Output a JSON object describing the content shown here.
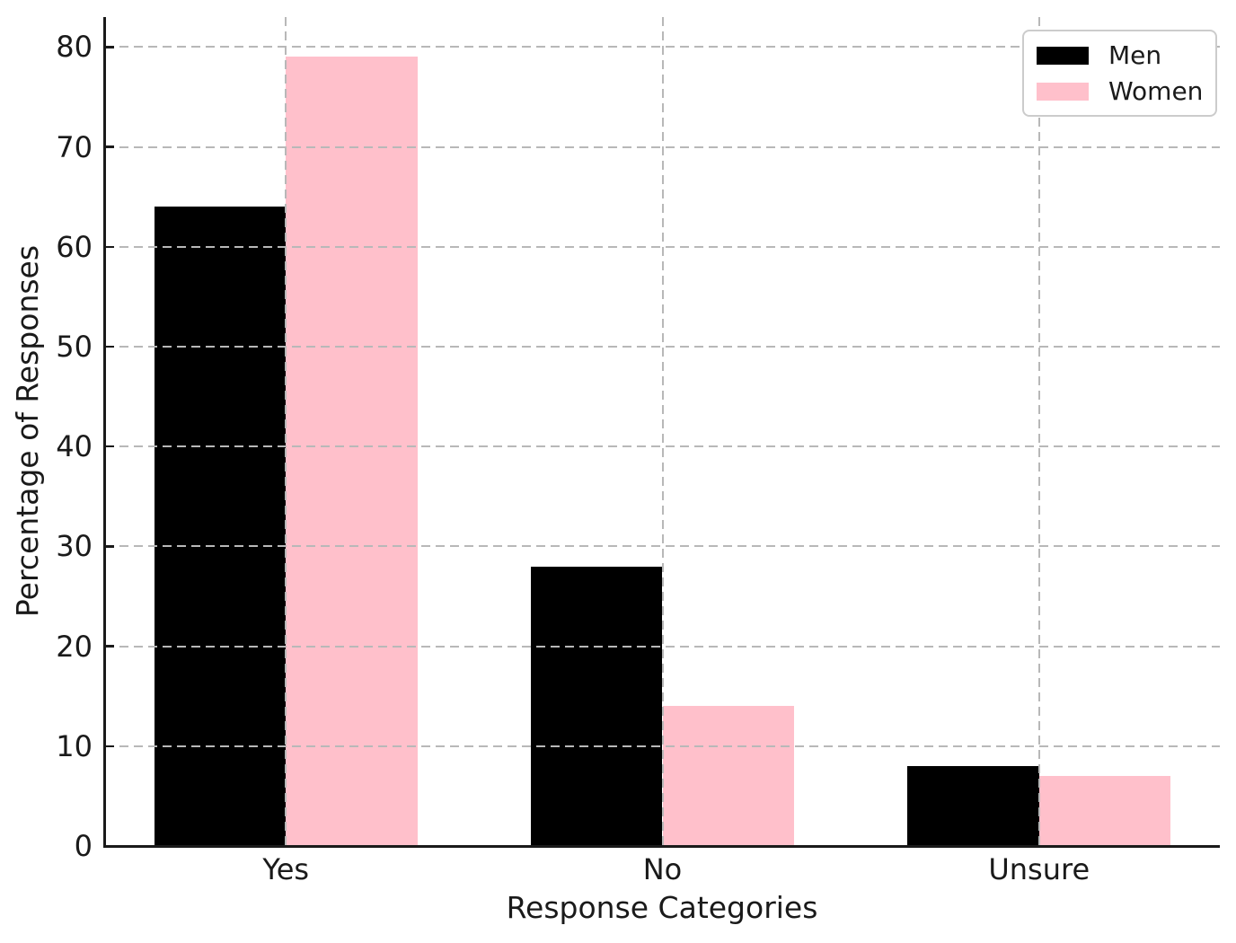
{
  "chart_data": {
    "type": "bar",
    "title": "",
    "xlabel": "Response Categories",
    "ylabel": "Percentage of Responses",
    "categories": [
      "Yes",
      "No",
      "Unsure"
    ],
    "series": [
      {
        "name": "Men",
        "color": "#000000",
        "values": [
          64,
          28,
          8
        ]
      },
      {
        "name": "Women",
        "color": "#ffc0cb",
        "values": [
          79,
          14,
          7
        ]
      }
    ],
    "ylim": [
      0,
      83
    ],
    "yticks": [
      0,
      10,
      20,
      30,
      40,
      50,
      60,
      70,
      80
    ],
    "bar_width": 0.35,
    "grid": {
      "visible": true,
      "style": "dashed",
      "color": "#b8b8b8",
      "above_bars": true
    },
    "legend": {
      "position": "upper right",
      "entries": [
        "Men",
        "Women"
      ]
    },
    "axis_color": "#1a1a1a",
    "background_color": "#ffffff"
  }
}
